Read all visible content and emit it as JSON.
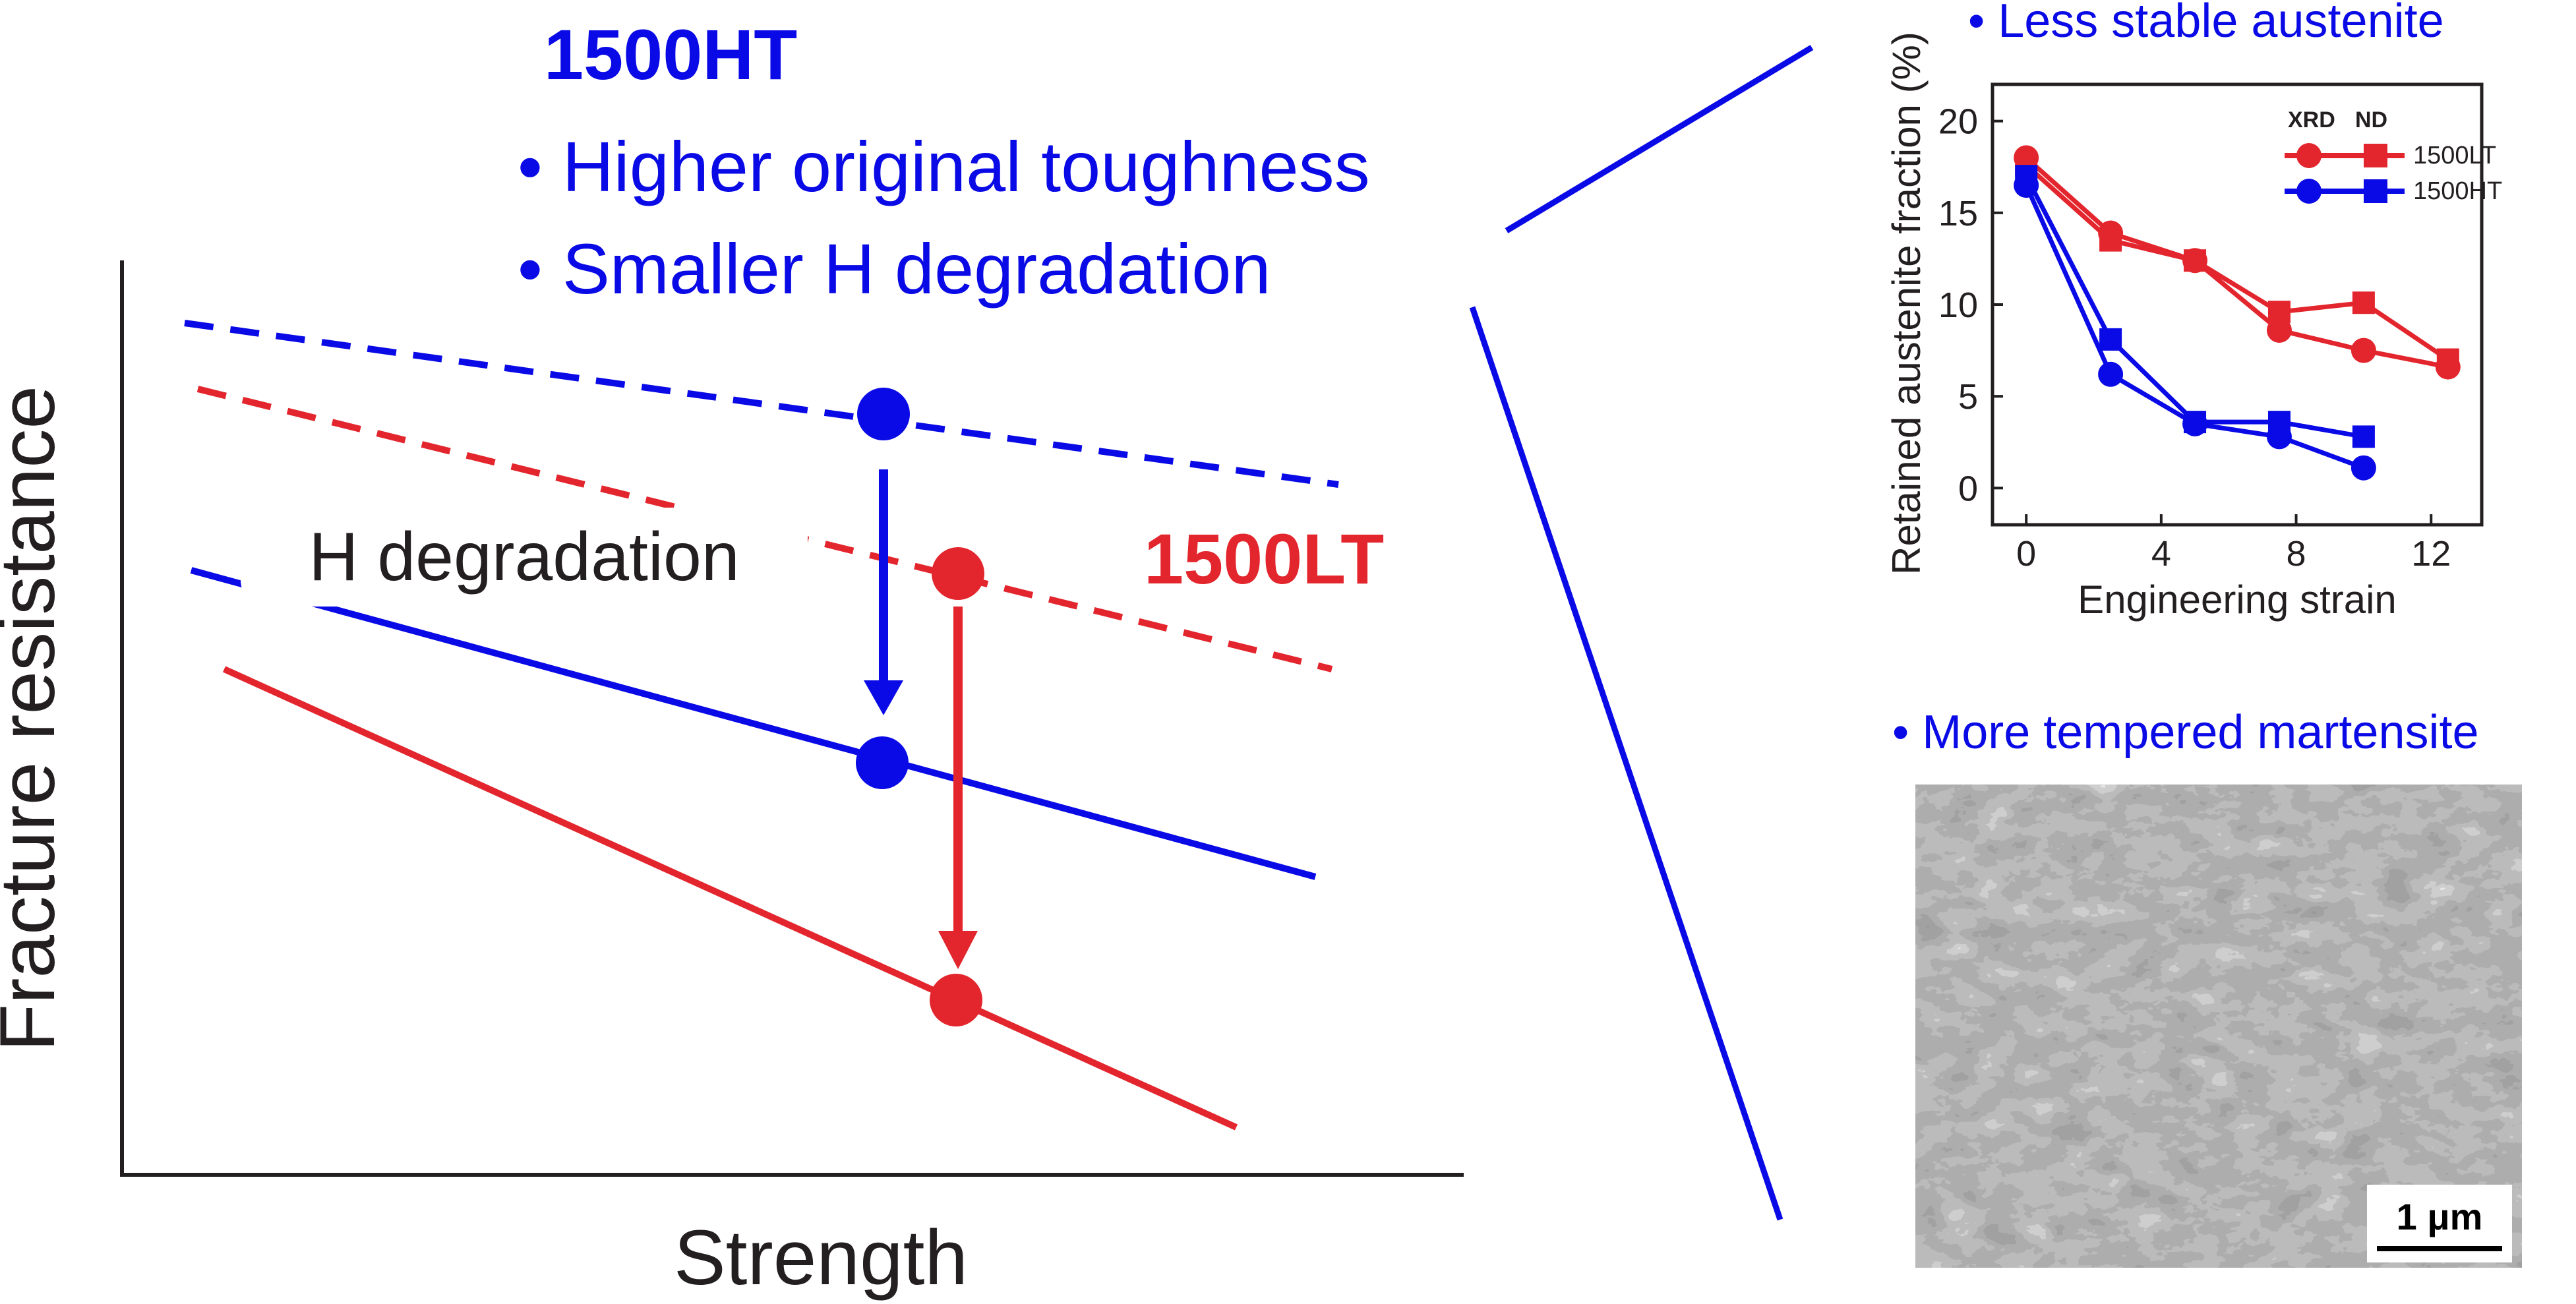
{
  "colors": {
    "blue": "#0a0ae6",
    "red": "#e3262d",
    "axis": "#231f20"
  },
  "schematic": {
    "x_axis_label": "Strength",
    "y_axis_label": "Fracture resistance",
    "label_ht": "1500HT",
    "label_lt": "1500LT",
    "ht_bullets": [
      "• Higher original toughness",
      "• Smaller H degradation"
    ],
    "degradation_label": "H degradation"
  },
  "inset_chart": {
    "title": "• Less stable austenite",
    "legend_header": [
      "XRD",
      "ND"
    ]
  },
  "chart_data": {
    "type": "line",
    "xlabel": "Engineering strain",
    "ylabel": "Retained austenite fraction (%)",
    "xlim": [
      -1,
      13.5
    ],
    "ylim": [
      -2,
      22
    ],
    "xticks": [
      0,
      4,
      8,
      12
    ],
    "yticks": [
      0,
      5,
      10,
      15,
      20
    ],
    "legend_position": "top-right",
    "series": [
      {
        "name": "1500LT",
        "method": "XRD",
        "marker": "circle",
        "color": "#e3262d",
        "x": [
          0,
          2.5,
          5,
          7.5,
          10,
          12.5
        ],
        "y": [
          18,
          13.9,
          12.4,
          8.6,
          7.5,
          6.6
        ]
      },
      {
        "name": "1500LT",
        "method": "ND",
        "marker": "square",
        "color": "#e3262d",
        "x": [
          0,
          2.5,
          5,
          7.5,
          10,
          12.5
        ],
        "y": [
          17.6,
          13.5,
          12.4,
          9.6,
          10.1,
          7.0
        ]
      },
      {
        "name": "1500HT",
        "method": "XRD",
        "marker": "circle",
        "color": "#0a0ae6",
        "x": [
          0,
          2.5,
          5,
          7.5,
          10
        ],
        "y": [
          16.5,
          6.2,
          3.5,
          2.8,
          1.1
        ]
      },
      {
        "name": "1500HT",
        "method": "ND",
        "marker": "square",
        "color": "#0a0ae6",
        "x": [
          0,
          2.5,
          5,
          7.5,
          10
        ],
        "y": [
          17,
          8.1,
          3.6,
          3.6,
          2.8
        ]
      }
    ]
  },
  "micrograph": {
    "title": "• More tempered martensite",
    "scale_bar": "1 μm"
  }
}
